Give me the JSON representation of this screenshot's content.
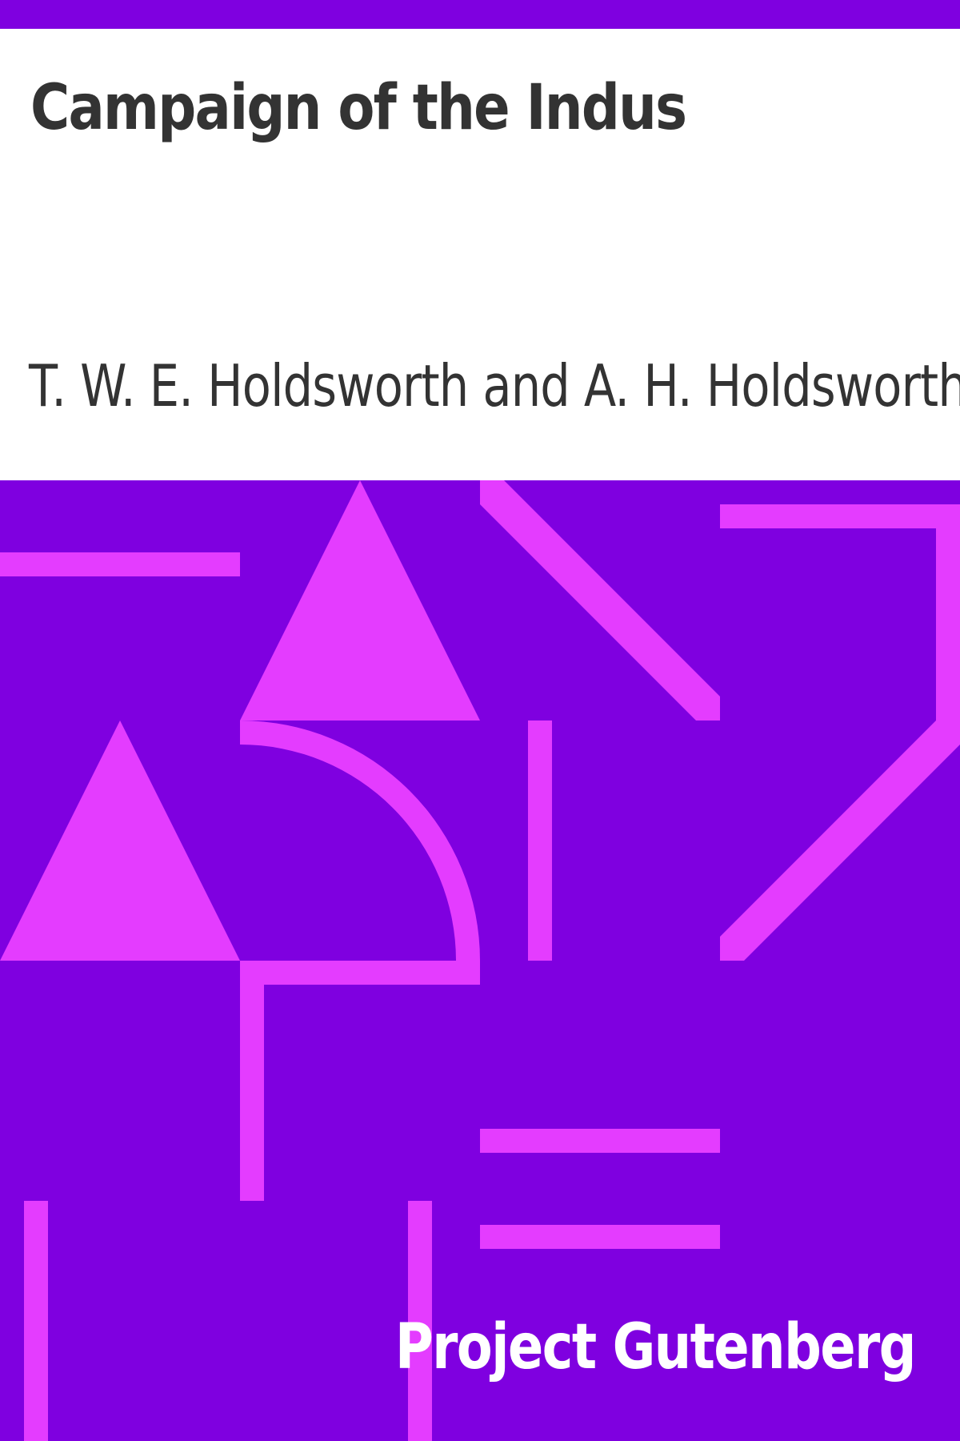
{
  "cover": {
    "title": "Campaign of the Indus",
    "author": "T. W. E. Holdsworth and A. H. Holdsworth",
    "publisher": "Project Gutenberg"
  },
  "colors": {
    "background_purple": "#7f00e0",
    "accent_magenta": "#e43cff",
    "title_text": "#333333",
    "publisher_text": "#ffffff"
  }
}
